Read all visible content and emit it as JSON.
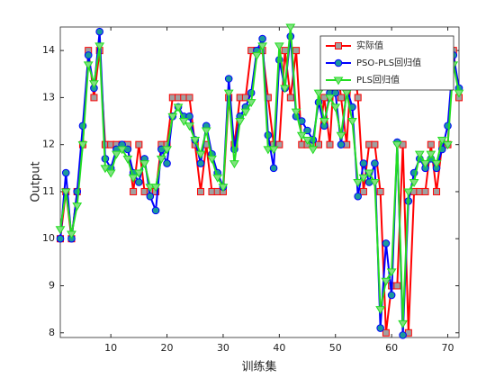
{
  "chart_data": {
    "type": "line",
    "xlabel": "训练集",
    "ylabel": "Output",
    "x": [
      1,
      2,
      3,
      4,
      5,
      6,
      7,
      8,
      9,
      10,
      11,
      12,
      13,
      14,
      15,
      16,
      17,
      18,
      19,
      20,
      21,
      22,
      23,
      24,
      25,
      26,
      27,
      28,
      29,
      30,
      31,
      32,
      33,
      34,
      35,
      36,
      37,
      38,
      39,
      40,
      41,
      42,
      43,
      44,
      45,
      46,
      47,
      48,
      49,
      50,
      51,
      52,
      53,
      54,
      55,
      56,
      57,
      58,
      59,
      60,
      61,
      62,
      63,
      64,
      65,
      66,
      67,
      68,
      69,
      70,
      71,
      72
    ],
    "series": [
      {
        "name": "实际值",
        "color": "#ff0000",
        "marker": "square",
        "marker_fill": "#a0a0a0",
        "values": [
          10,
          11,
          10,
          11,
          12,
          14,
          13,
          14,
          12,
          12,
          12,
          12,
          12,
          11,
          12,
          11,
          11,
          11,
          12,
          12,
          13,
          13,
          13,
          13,
          12,
          11,
          12,
          11,
          11,
          11,
          13,
          12,
          13,
          13,
          14,
          14,
          14,
          13,
          12,
          12,
          14,
          13,
          14,
          12,
          12,
          12,
          12,
          13,
          12,
          14,
          13,
          12,
          14,
          13,
          11,
          12,
          12,
          11,
          8,
          9,
          9,
          12,
          8,
          11,
          11,
          11,
          12,
          11,
          12,
          12,
          14,
          13
        ]
      },
      {
        "name": "PSO-PLS回归值",
        "color": "#0000ff",
        "marker": "circle",
        "marker_fill": "#1a9a9a",
        "values": [
          10,
          11.4,
          10,
          11,
          12.4,
          13.9,
          13.2,
          14.4,
          11.7,
          11.5,
          11.9,
          12,
          11.9,
          11.4,
          11.2,
          11.7,
          10.9,
          10.6,
          11.9,
          11.6,
          12.6,
          12.8,
          12.6,
          12.6,
          12.1,
          11.6,
          12.4,
          11.8,
          11.4,
          11.1,
          13.4,
          11.9,
          12.6,
          12.8,
          13.1,
          14,
          14.25,
          12.2,
          11.5,
          13.8,
          13.2,
          14.3,
          12.6,
          12.5,
          12.3,
          12.1,
          12.9,
          12.4,
          13.1,
          13.1,
          12,
          13.2,
          12.8,
          10.9,
          11.6,
          11.2,
          11.6,
          8.1,
          9.9,
          8.8,
          12.05,
          7.95,
          10.8,
          11.4,
          11.7,
          11.5,
          11.7,
          11.5,
          11.9,
          12.4,
          13.9,
          13.2
        ]
      },
      {
        "name": "PLS回归值",
        "color": "#22dd22",
        "marker": "triangle-down",
        "marker_fill": "#7fe07f",
        "values": [
          10.2,
          11,
          10.1,
          10.7,
          12,
          13.7,
          13.3,
          14.1,
          11.5,
          11.4,
          11.8,
          11.9,
          11.7,
          11.3,
          11.4,
          11.6,
          11.1,
          11.1,
          11.7,
          11.9,
          12.6,
          12.8,
          12.5,
          12.4,
          12.1,
          11.8,
          12.3,
          11.7,
          11.3,
          11.1,
          13.1,
          11.6,
          12.5,
          12.7,
          12.9,
          13.9,
          14.1,
          11.9,
          11.9,
          14.1,
          13.2,
          14.5,
          12.7,
          12.2,
          12.1,
          11.9,
          13.1,
          12.5,
          13,
          12.8,
          12.2,
          13.1,
          12.5,
          11.2,
          11.3,
          11.4,
          11.2,
          8.5,
          9.1,
          9.3,
          12,
          8.2,
          11,
          11.2,
          11.8,
          11.6,
          11.8,
          11.6,
          12.1,
          12,
          13.7,
          13.1
        ]
      }
    ],
    "xlim": [
      1,
      72
    ],
    "xticks": [
      10,
      20,
      30,
      40,
      50,
      60,
      70
    ],
    "ylim": [
      7.9,
      14.5
    ],
    "yticks": [
      8,
      9,
      10,
      11,
      12,
      13,
      14
    ],
    "legend": "upper right"
  }
}
